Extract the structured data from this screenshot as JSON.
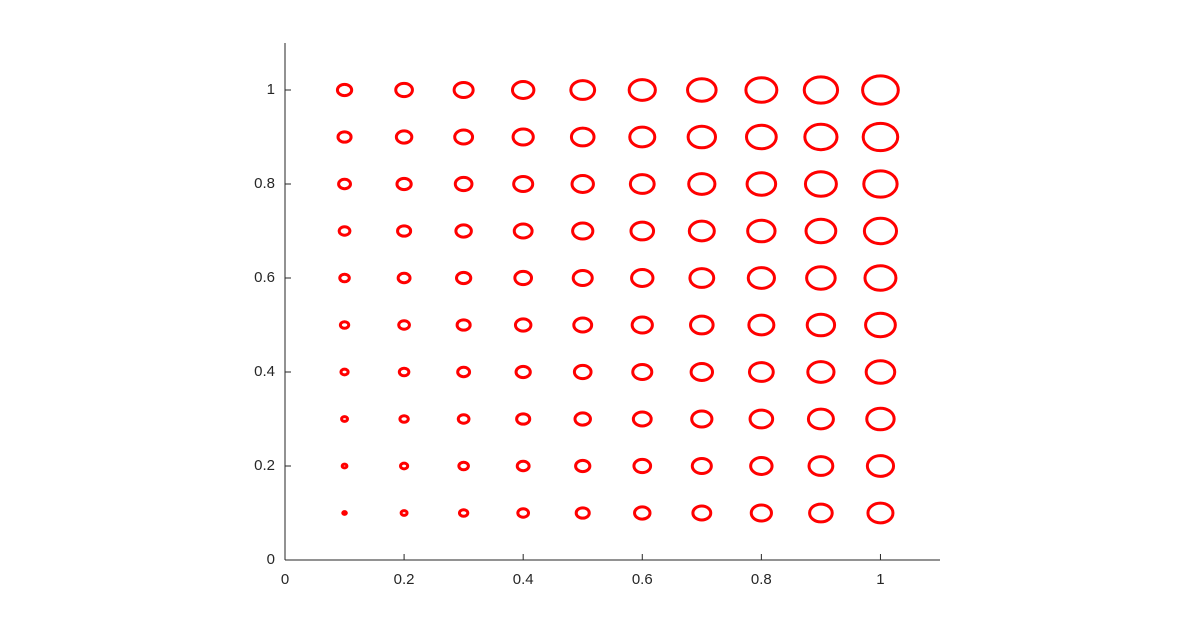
{
  "chart_data": {
    "type": "scatter",
    "color": "#ff0000",
    "xlim": [
      0,
      1.1
    ],
    "ylim": [
      0,
      1.1
    ],
    "xticks": [
      0,
      0.2,
      0.4,
      0.6,
      0.8,
      1
    ],
    "yticks": [
      0,
      0.2,
      0.4,
      0.6,
      0.8,
      1
    ],
    "series": [
      {
        "x": [
          0.1,
          0.2,
          0.3,
          0.4,
          0.5,
          0.6,
          0.7,
          0.8,
          0.9,
          1,
          0.1,
          0.2,
          0.3,
          0.4,
          0.5,
          0.6,
          0.7,
          0.8,
          0.9,
          1,
          0.1,
          0.2,
          0.3,
          0.4,
          0.5,
          0.6,
          0.7,
          0.8,
          0.9,
          1,
          0.1,
          0.2,
          0.3,
          0.4,
          0.5,
          0.6,
          0.7,
          0.8,
          0.9,
          1,
          0.1,
          0.2,
          0.3,
          0.4,
          0.5,
          0.6,
          0.7,
          0.8,
          0.9,
          1,
          0.1,
          0.2,
          0.3,
          0.4,
          0.5,
          0.6,
          0.7,
          0.8,
          0.9,
          1,
          0.1,
          0.2,
          0.3,
          0.4,
          0.5,
          0.6,
          0.7,
          0.8,
          0.9,
          1,
          0.1,
          0.2,
          0.3,
          0.4,
          0.5,
          0.6,
          0.7,
          0.8,
          0.9,
          1,
          0.1,
          0.2,
          0.3,
          0.4,
          0.5,
          0.6,
          0.7,
          0.8,
          0.9,
          1,
          0.1,
          0.2,
          0.3,
          0.4,
          0.5,
          0.6,
          0.7,
          0.8,
          0.9,
          1
        ],
        "y": [
          0.1,
          0.1,
          0.1,
          0.1,
          0.1,
          0.1,
          0.1,
          0.1,
          0.1,
          0.1,
          0.2,
          0.2,
          0.2,
          0.2,
          0.2,
          0.2,
          0.2,
          0.2,
          0.2,
          0.2,
          0.3,
          0.3,
          0.3,
          0.3,
          0.3,
          0.3,
          0.3,
          0.3,
          0.3,
          0.3,
          0.4,
          0.4,
          0.4,
          0.4,
          0.4,
          0.4,
          0.4,
          0.4,
          0.4,
          0.4,
          0.5,
          0.5,
          0.5,
          0.5,
          0.5,
          0.5,
          0.5,
          0.5,
          0.5,
          0.5,
          0.6,
          0.6,
          0.6,
          0.6,
          0.6,
          0.6,
          0.6,
          0.6,
          0.6,
          0.6,
          0.7,
          0.7,
          0.7,
          0.7,
          0.7,
          0.7,
          0.7,
          0.7,
          0.7,
          0.7,
          0.8,
          0.8,
          0.8,
          0.8,
          0.8,
          0.8,
          0.8,
          0.8,
          0.8,
          0.8,
          0.9,
          0.9,
          0.9,
          0.9,
          0.9,
          0.9,
          0.9,
          0.9,
          0.9,
          0.9,
          1,
          1,
          1,
          1,
          1,
          1,
          1,
          1,
          1,
          1
        ],
        "radius": [
          0.003,
          0.005,
          0.007,
          0.009,
          0.011,
          0.013,
          0.015,
          0.017,
          0.019,
          0.021,
          0.004,
          0.006,
          0.008,
          0.01,
          0.012,
          0.014,
          0.016,
          0.018,
          0.02,
          0.022,
          0.005,
          0.007,
          0.009,
          0.011,
          0.013,
          0.015,
          0.017,
          0.019,
          0.021,
          0.023,
          0.006,
          0.008,
          0.01,
          0.012,
          0.014,
          0.016,
          0.018,
          0.02,
          0.022,
          0.024,
          0.007,
          0.009,
          0.011,
          0.013,
          0.015,
          0.017,
          0.019,
          0.021,
          0.023,
          0.025,
          0.008,
          0.01,
          0.012,
          0.014,
          0.016,
          0.018,
          0.02,
          0.022,
          0.024,
          0.026,
          0.009,
          0.011,
          0.013,
          0.015,
          0.017,
          0.019,
          0.021,
          0.023,
          0.025,
          0.027,
          0.01,
          0.012,
          0.014,
          0.016,
          0.018,
          0.02,
          0.022,
          0.024,
          0.026,
          0.028,
          0.011,
          0.013,
          0.015,
          0.017,
          0.019,
          0.021,
          0.023,
          0.025,
          0.027,
          0.029,
          0.012,
          0.014,
          0.016,
          0.018,
          0.02,
          0.022,
          0.024,
          0.026,
          0.028,
          0.03
        ]
      }
    ]
  }
}
